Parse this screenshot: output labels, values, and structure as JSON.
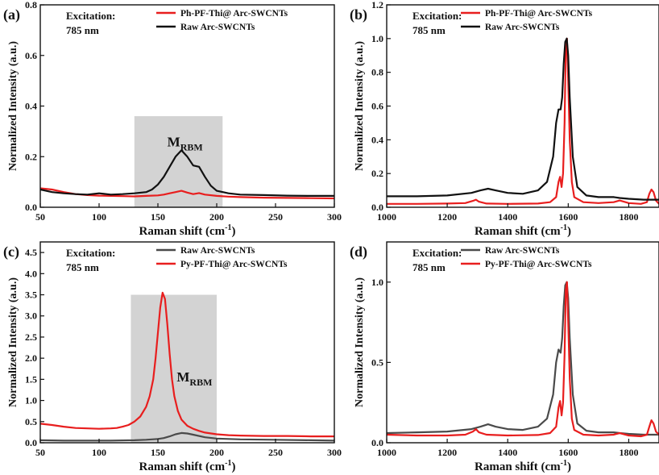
{
  "chart_data": [
    {
      "panel": "(a)",
      "type": "line",
      "xlabel": "Raman shift",
      "xunit": "cm",
      "xunit_sup": "-1",
      "ylabel": "Normalized Intensity (a.u.)",
      "xlim": [
        50,
        300
      ],
      "ylim": [
        0,
        0.8
      ],
      "xticks": [
        "50",
        "100",
        "150",
        "200",
        "250",
        "300"
      ],
      "yticks": [
        "0.0",
        "0.2",
        "0.4",
        "0.6",
        "0.8"
      ],
      "excitation": "Excitation:",
      "wavelength": "785 nm",
      "legend_position": "top-right",
      "shade": {
        "x": [
          130,
          205
        ],
        "y": [
          0,
          0.36
        ]
      },
      "annotation": {
        "main": "M",
        "sub": "RBM",
        "x": 158,
        "y": 0.24
      },
      "series": [
        {
          "name": "Ph-PF-Thi@ Arc-SWCNTs",
          "color": "#e81e1e",
          "x": [
            50,
            60,
            70,
            80,
            90,
            100,
            110,
            120,
            130,
            140,
            150,
            155,
            160,
            165,
            170,
            175,
            180,
            185,
            190,
            200,
            210,
            220,
            240,
            260,
            280,
            300
          ],
          "y": [
            0.075,
            0.07,
            0.06,
            0.052,
            0.048,
            0.046,
            0.045,
            0.044,
            0.043,
            0.045,
            0.047,
            0.05,
            0.055,
            0.06,
            0.065,
            0.058,
            0.052,
            0.056,
            0.05,
            0.045,
            0.042,
            0.04,
            0.038,
            0.037,
            0.036,
            0.035
          ]
        },
        {
          "name": "Raw Arc-SWCNTs",
          "color": "#111111",
          "x": [
            50,
            60,
            70,
            80,
            90,
            100,
            110,
            120,
            130,
            140,
            145,
            150,
            155,
            160,
            165,
            170,
            175,
            180,
            185,
            190,
            195,
            200,
            210,
            220,
            240,
            260,
            280,
            300
          ],
          "y": [
            0.07,
            0.06,
            0.055,
            0.052,
            0.05,
            0.055,
            0.05,
            0.052,
            0.055,
            0.06,
            0.07,
            0.09,
            0.12,
            0.16,
            0.2,
            0.225,
            0.2,
            0.165,
            0.16,
            0.12,
            0.085,
            0.065,
            0.055,
            0.05,
            0.048,
            0.046,
            0.045,
            0.045
          ]
        }
      ]
    },
    {
      "panel": "(b)",
      "type": "line",
      "xlabel": "Raman shift",
      "xunit": "cm",
      "xunit_sup": "-1",
      "ylabel": "Normalized Intensity (a.u.)",
      "xlim": [
        1000,
        1900
      ],
      "ylim": [
        0,
        1.2
      ],
      "xticks": [
        "1000",
        "1200",
        "1400",
        "1600",
        "1800"
      ],
      "yticks": [
        "0.0",
        "0.2",
        "0.4",
        "0.6",
        "0.8",
        "1.0",
        "1.2"
      ],
      "excitation": "Excitation:",
      "wavelength": "785 nm",
      "legend_position": "top-center",
      "series": [
        {
          "name": "Ph-PF-Thi@ Arc-SWCNTs",
          "color": "#e81e1e",
          "x": [
            1000,
            1100,
            1200,
            1260,
            1285,
            1295,
            1305,
            1330,
            1400,
            1500,
            1540,
            1560,
            1568,
            1573,
            1578,
            1583,
            1588,
            1592,
            1596,
            1600,
            1605,
            1612,
            1620,
            1650,
            1700,
            1750,
            1770,
            1800,
            1840,
            1860,
            1868,
            1875,
            1882,
            1890,
            1900
          ],
          "y": [
            0.02,
            0.02,
            0.022,
            0.025,
            0.038,
            0.045,
            0.033,
            0.022,
            0.02,
            0.022,
            0.03,
            0.06,
            0.15,
            0.18,
            0.12,
            0.2,
            0.5,
            0.95,
            1.0,
            0.75,
            0.4,
            0.15,
            0.06,
            0.03,
            0.025,
            0.03,
            0.04,
            0.025,
            0.02,
            0.03,
            0.08,
            0.105,
            0.09,
            0.04,
            0.02
          ]
        },
        {
          "name": "Raw Arc-SWCNTs",
          "color": "#111111",
          "x": [
            1000,
            1100,
            1200,
            1280,
            1310,
            1335,
            1360,
            1400,
            1450,
            1500,
            1530,
            1550,
            1560,
            1568,
            1575,
            1580,
            1585,
            1590,
            1595,
            1600,
            1605,
            1615,
            1630,
            1660,
            1700,
            1750,
            1770,
            1800,
            1850,
            1900
          ],
          "y": [
            0.065,
            0.065,
            0.07,
            0.085,
            0.1,
            0.11,
            0.1,
            0.085,
            0.08,
            0.1,
            0.15,
            0.3,
            0.5,
            0.58,
            0.58,
            0.65,
            0.85,
            0.98,
            1.0,
            0.9,
            0.65,
            0.3,
            0.12,
            0.07,
            0.06,
            0.06,
            0.055,
            0.05,
            0.045,
            0.045
          ]
        }
      ]
    },
    {
      "panel": "(c)",
      "type": "line",
      "xlabel": "Raman shift",
      "xunit": "cm",
      "xunit_sup": "-1",
      "ylabel": "Normalized Intensity (a.u.)",
      "xlim": [
        50,
        300
      ],
      "ylim": [
        0,
        4.75
      ],
      "xticks": [
        "50",
        "100",
        "150",
        "200",
        "250",
        "300"
      ],
      "yticks": [
        "0.0",
        "0.5",
        "1.0",
        "1.5",
        "2.0",
        "2.5",
        "3.0",
        "3.5",
        "4.0",
        "4.5"
      ],
      "excitation": "Excitation:",
      "wavelength": "785 nm",
      "legend_position": "top-right",
      "shade": {
        "x": [
          127,
          200
        ],
        "y": [
          0,
          3.5
        ]
      },
      "annotation": {
        "main": "M",
        "sub": "RBM",
        "x": 166,
        "y": 1.45
      },
      "series": [
        {
          "name": "Raw Arc-SWCNTs",
          "color": "#4a4a4a",
          "x": [
            50,
            70,
            90,
            110,
            130,
            140,
            150,
            155,
            160,
            165,
            170,
            175,
            180,
            190,
            200,
            220,
            250,
            280,
            300
          ],
          "y": [
            0.06,
            0.05,
            0.05,
            0.05,
            0.06,
            0.07,
            0.09,
            0.11,
            0.15,
            0.2,
            0.23,
            0.22,
            0.19,
            0.13,
            0.1,
            0.08,
            0.07,
            0.06,
            0.05
          ]
        },
        {
          "name": "Py-PF-Thi@ Arc-SWCNTs",
          "color": "#e81e1e",
          "x": [
            50,
            60,
            70,
            80,
            90,
            100,
            110,
            115,
            120,
            125,
            130,
            135,
            140,
            143,
            146,
            148,
            150,
            152,
            154,
            156,
            158,
            160,
            162,
            164,
            167,
            170,
            175,
            180,
            185,
            190,
            200,
            210,
            220,
            240,
            260,
            280,
            300
          ],
          "y": [
            0.45,
            0.42,
            0.38,
            0.35,
            0.34,
            0.33,
            0.34,
            0.35,
            0.38,
            0.42,
            0.5,
            0.62,
            0.85,
            1.1,
            1.5,
            2.0,
            2.6,
            3.2,
            3.55,
            3.4,
            2.8,
            2.1,
            1.5,
            1.1,
            0.75,
            0.55,
            0.4,
            0.33,
            0.28,
            0.24,
            0.2,
            0.18,
            0.17,
            0.16,
            0.16,
            0.15,
            0.15
          ]
        }
      ]
    },
    {
      "panel": "(d)",
      "type": "line",
      "xlabel": "Raman shift",
      "xunit": "cm",
      "xunit_sup": "-1",
      "ylabel": "Normalized Intensity (a.u.)",
      "xlim": [
        1000,
        1900
      ],
      "ylim": [
        0,
        1.25
      ],
      "xticks": [
        "1000",
        "1200",
        "1400",
        "1600",
        "1800"
      ],
      "yticks": [
        "0.0",
        "0.5",
        "1.0"
      ],
      "excitation": "Excitation:",
      "wavelength": "785 nm",
      "legend_position": "top-center",
      "series": [
        {
          "name": "Raw Arc-SWCNTs",
          "color": "#4a4a4a",
          "x": [
            1000,
            1100,
            1200,
            1280,
            1310,
            1335,
            1360,
            1400,
            1450,
            1500,
            1530,
            1550,
            1560,
            1568,
            1575,
            1580,
            1585,
            1590,
            1595,
            1600,
            1605,
            1615,
            1630,
            1660,
            1700,
            1750,
            1770,
            1800,
            1850,
            1900
          ],
          "y": [
            0.06,
            0.065,
            0.07,
            0.085,
            0.1,
            0.115,
            0.1,
            0.085,
            0.08,
            0.1,
            0.15,
            0.3,
            0.5,
            0.58,
            0.56,
            0.65,
            0.85,
            0.98,
            1.0,
            0.9,
            0.65,
            0.3,
            0.12,
            0.075,
            0.065,
            0.065,
            0.06,
            0.055,
            0.05,
            0.05
          ]
        },
        {
          "name": "Py-PF-Thi@ Arc-SWCNTs",
          "color": "#e81e1e",
          "x": [
            1000,
            1100,
            1200,
            1260,
            1285,
            1295,
            1305,
            1330,
            1400,
            1500,
            1540,
            1560,
            1568,
            1573,
            1578,
            1583,
            1588,
            1592,
            1596,
            1600,
            1605,
            1612,
            1620,
            1650,
            1700,
            1750,
            1770,
            1800,
            1840,
            1860,
            1868,
            1875,
            1882,
            1890,
            1900
          ],
          "y": [
            0.05,
            0.045,
            0.045,
            0.05,
            0.07,
            0.085,
            0.065,
            0.05,
            0.045,
            0.048,
            0.06,
            0.1,
            0.22,
            0.26,
            0.17,
            0.25,
            0.55,
            0.95,
            1.0,
            0.75,
            0.4,
            0.15,
            0.08,
            0.05,
            0.045,
            0.05,
            0.06,
            0.045,
            0.04,
            0.05,
            0.1,
            0.14,
            0.12,
            0.07,
            0.05
          ]
        }
      ]
    }
  ]
}
